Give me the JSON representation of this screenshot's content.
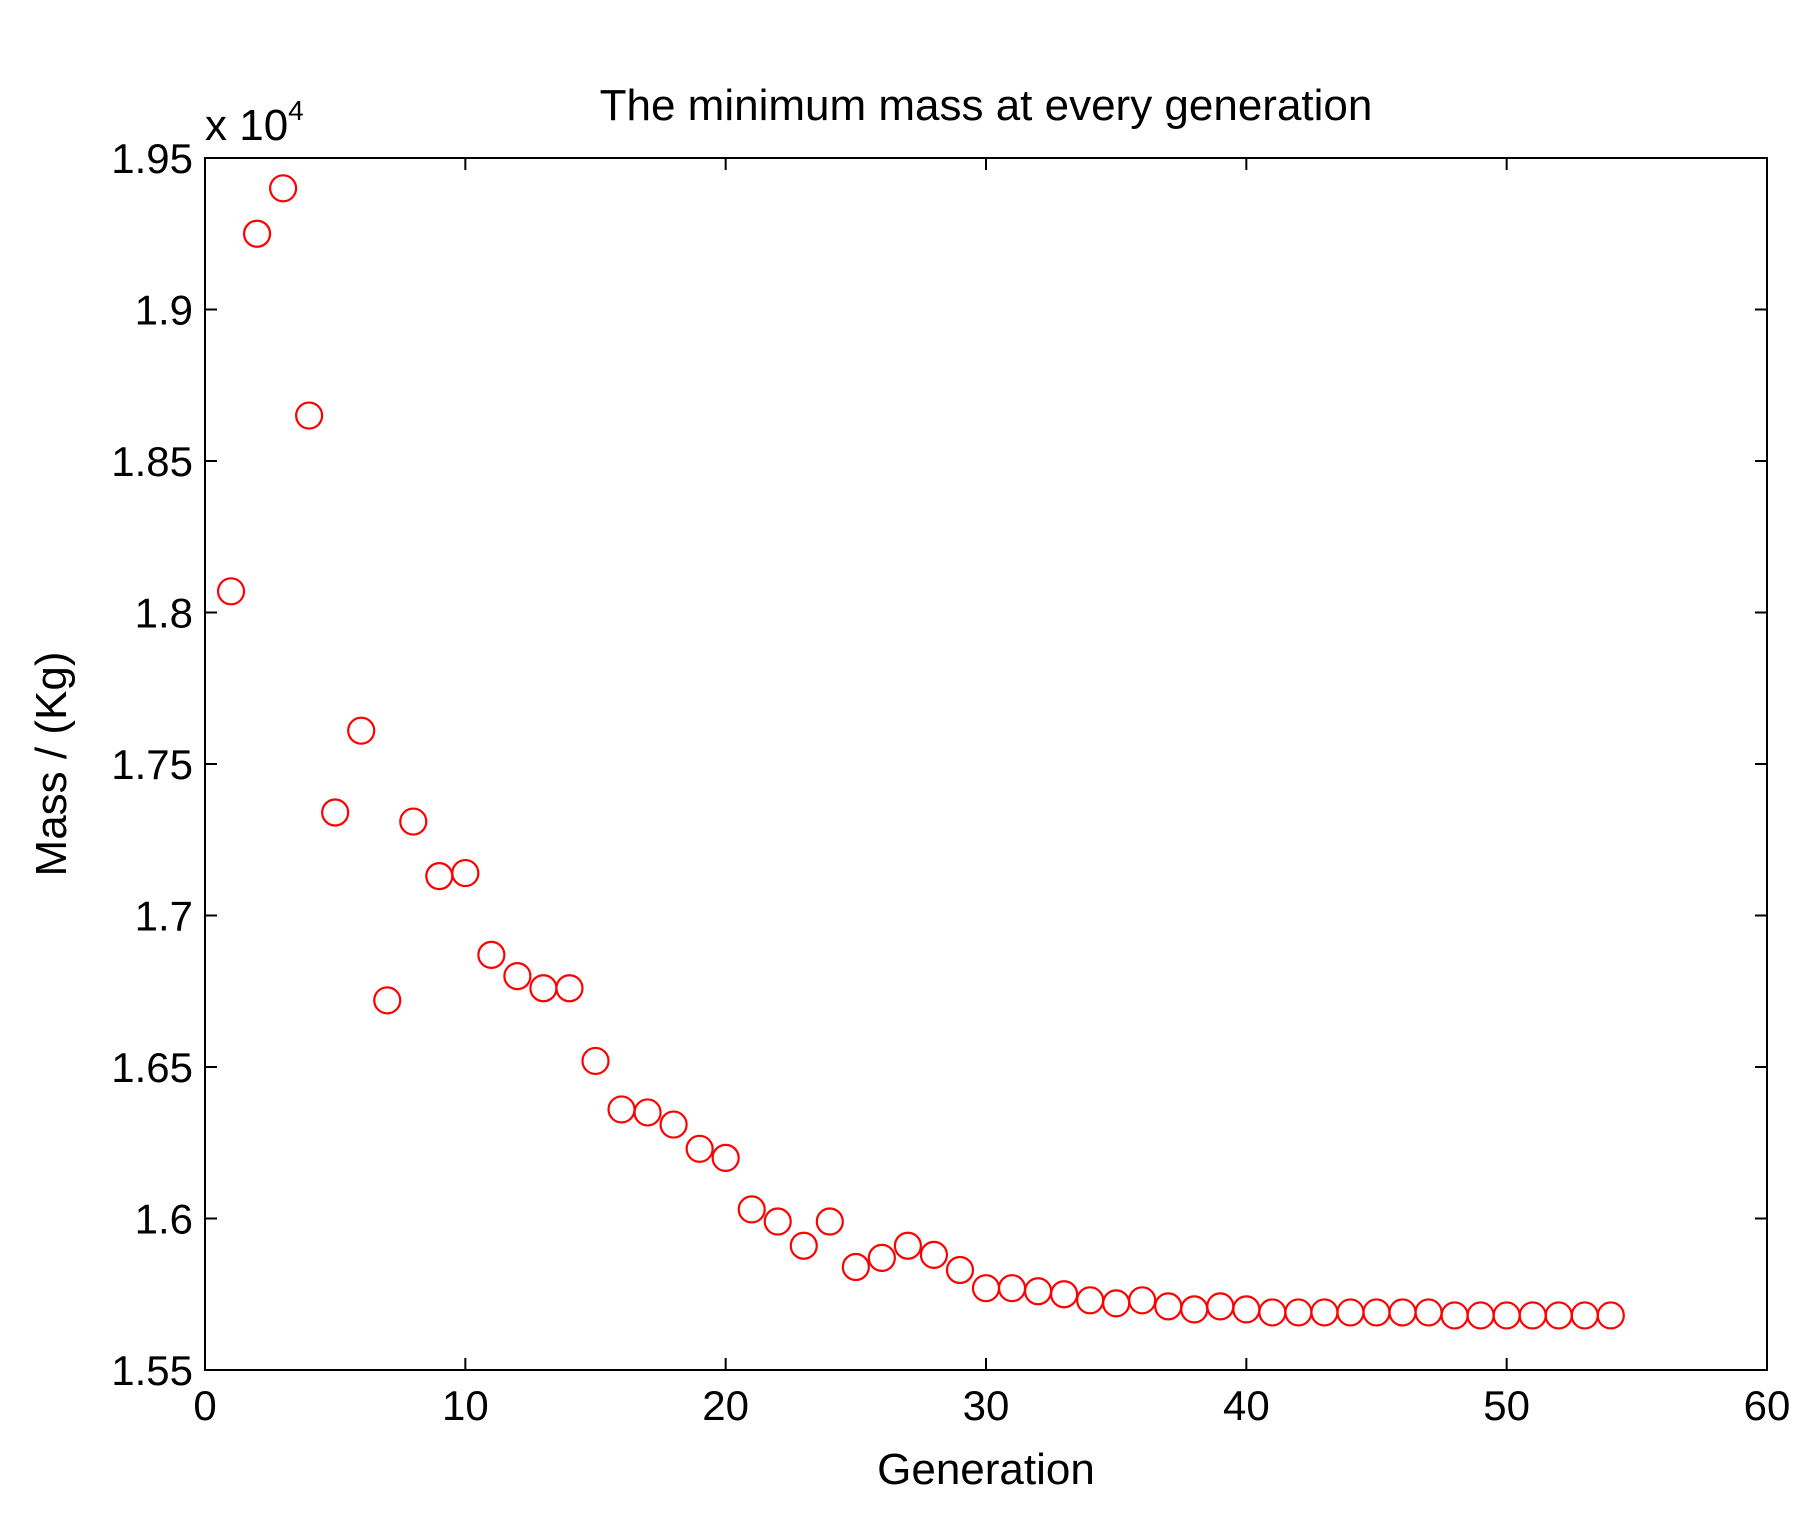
{
  "chart_data": {
    "type": "scatter",
    "title": "The minimum mass at every generation",
    "xlabel": "Generation",
    "ylabel": "Mass / (Kg)",
    "y_multiplier_base": "x 10",
    "y_multiplier_exp": "4",
    "xlim": [
      0,
      60
    ],
    "ylim": [
      1.55,
      1.95
    ],
    "xticks": [
      0,
      10,
      20,
      30,
      40,
      50,
      60
    ],
    "xtick_labels": [
      "0",
      "10",
      "20",
      "30",
      "40",
      "50",
      "60"
    ],
    "yticks": [
      1.55,
      1.6,
      1.65,
      1.7,
      1.75,
      1.8,
      1.85,
      1.9,
      1.95
    ],
    "ytick_labels": [
      "1.55",
      "1.6",
      "1.65",
      "1.7",
      "1.75",
      "1.8",
      "1.85",
      "1.9",
      "1.95"
    ],
    "grid": false,
    "marker": "circle-open",
    "marker_color": "#ff0000",
    "series": [
      {
        "name": "minimum mass",
        "x": [
          1,
          2,
          3,
          4,
          5,
          6,
          7,
          8,
          9,
          10,
          11,
          12,
          13,
          14,
          15,
          16,
          17,
          18,
          19,
          20,
          21,
          22,
          23,
          24,
          25,
          26,
          27,
          28,
          29,
          30,
          31,
          32,
          33,
          34,
          35,
          36,
          37,
          38,
          39,
          40,
          41,
          42,
          43,
          44,
          45,
          46,
          47,
          48,
          49,
          50,
          51,
          52,
          53,
          54
        ],
        "y": [
          1.807,
          1.925,
          1.94,
          1.865,
          1.734,
          1.761,
          1.672,
          1.731,
          1.713,
          1.714,
          1.687,
          1.68,
          1.676,
          1.676,
          1.652,
          1.636,
          1.635,
          1.631,
          1.623,
          1.62,
          1.603,
          1.599,
          1.591,
          1.599,
          1.584,
          1.587,
          1.591,
          1.588,
          1.583,
          1.577,
          1.577,
          1.576,
          1.575,
          1.573,
          1.572,
          1.573,
          1.571,
          1.57,
          1.571,
          1.57,
          1.569,
          1.569,
          1.569,
          1.569,
          1.569,
          1.569,
          1.569,
          1.568,
          1.568,
          1.568,
          1.568,
          1.568,
          1.568,
          1.568
        ]
      }
    ]
  }
}
